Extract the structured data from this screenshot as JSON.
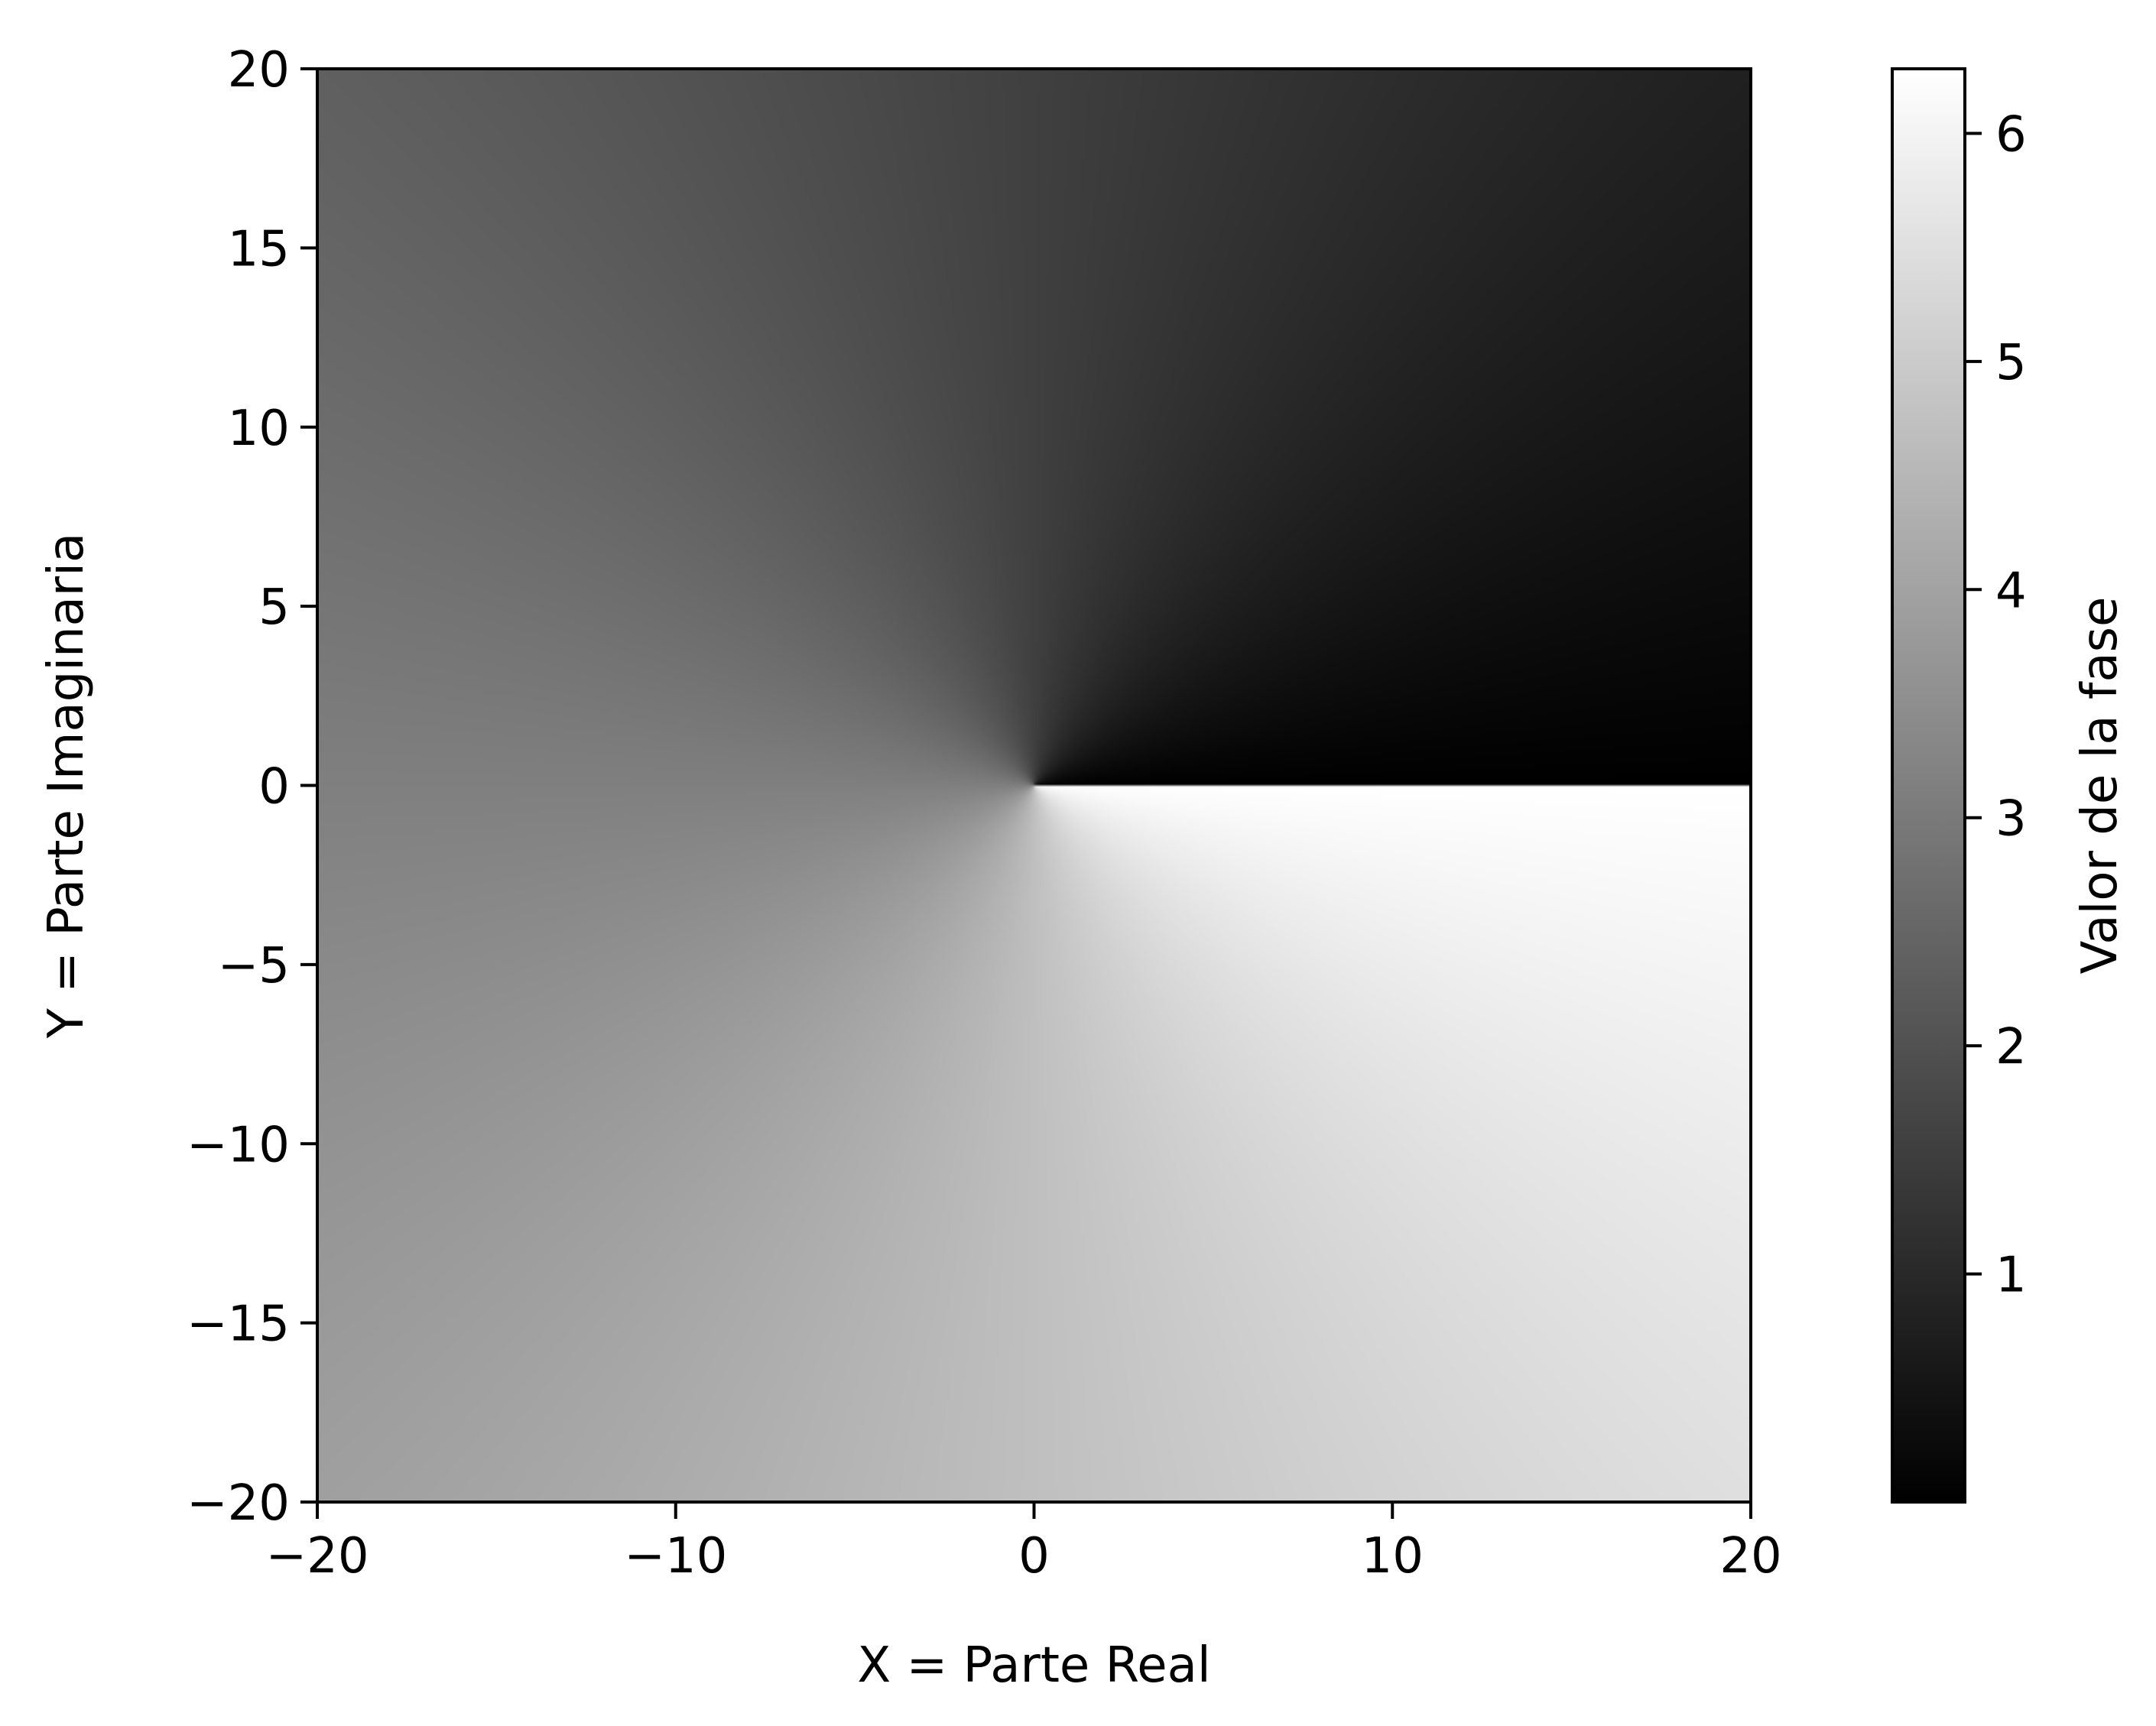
{
  "chart_data": {
    "type": "heatmap",
    "description_function": "phase",
    "xlabel": "X = Parte Real",
    "ylabel": "Y = Parte Imaginaria",
    "xlim": [
      -20,
      20
    ],
    "ylim": [
      -20,
      20
    ],
    "xticks": [
      -20,
      -10,
      0,
      10,
      20
    ],
    "xtick_labels": [
      "−20",
      "−10",
      "0",
      "10",
      "20"
    ],
    "yticks": [
      20,
      15,
      10,
      5,
      0,
      -5,
      -10,
      -15,
      -20
    ],
    "ytick_labels": [
      "20",
      "15",
      "10",
      "5",
      "0",
      "−5",
      "−10",
      "−15",
      "−20"
    ],
    "colormap": "gray",
    "colorbar": {
      "label": "Valor de la fase",
      "range": [
        0,
        6.283
      ],
      "ticks": [
        1,
        2,
        3,
        4,
        5,
        6
      ],
      "tick_labels": [
        "1",
        "2",
        "3",
        "4",
        "5",
        "6"
      ]
    },
    "grid": false
  }
}
